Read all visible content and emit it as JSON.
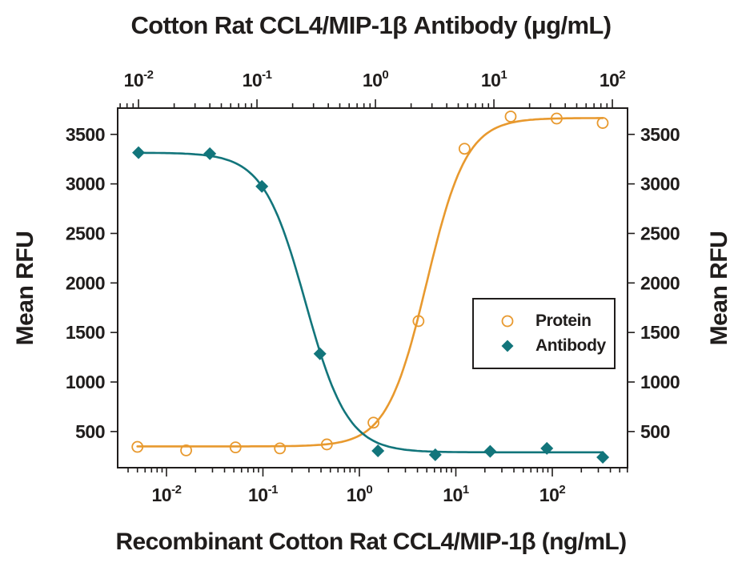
{
  "titles": {
    "top_axis_title": "Cotton Rat CCL4/MIP-1β Antibody (μg/mL)",
    "bottom_axis_title": "Recombinant Cotton Rat CCL4/MIP-1β (ng/mL)",
    "left_axis_title": "Mean RFU",
    "right_axis_title": "Mean RFU"
  },
  "colors": {
    "ink": "#201d1c",
    "protein": "#E8992E",
    "antibody": "#12757B",
    "background": "#ffffff"
  },
  "chart_data": {
    "type": "scatter",
    "grid": false,
    "y_axis": {
      "label": "Mean RFU",
      "ticks": [
        500,
        1000,
        1500,
        2000,
        2500,
        3000,
        3500
      ],
      "range": [
        135,
        3765
      ],
      "mirrored_right": true
    },
    "top_x_axis": {
      "label": "Cotton Rat CCL4/MIP-1β Antibody (μg/mL)",
      "scale": "log",
      "unit": "μg/mL",
      "tick_exponents": [
        -2,
        -1,
        0,
        1,
        2
      ],
      "range_exponents": [
        -2.176,
        2.128
      ]
    },
    "bottom_x_axis": {
      "label": "Recombinant Cotton Rat CCL4/MIP-1β (ng/mL)",
      "scale": "log",
      "unit": "ng/mL",
      "tick_exponents": [
        -2,
        -1,
        0,
        1,
        2
      ],
      "range_exponents": [
        -2.506,
        2.78
      ]
    },
    "legend": {
      "position": "middle-right",
      "border": true,
      "items": [
        "Protein",
        "Antibody"
      ]
    },
    "series": [
      {
        "name": "Protein",
        "axis": "bottom_x_axis",
        "marker": "open-circle",
        "color": "#E8992E",
        "points": [
          [
            0.005,
            345
          ],
          [
            0.016,
            310
          ],
          [
            0.052,
            340
          ],
          [
            0.15,
            330
          ],
          [
            0.46,
            370
          ],
          [
            1.4,
            590
          ],
          [
            4.1,
            1615
          ],
          [
            12.3,
            3355
          ],
          [
            37,
            3680
          ],
          [
            111,
            3660
          ],
          [
            333,
            3615
          ]
        ],
        "fit_4pl": {
          "low_dose_asymptote": 350,
          "high_dose_asymptote": 3665,
          "c50": 5.0,
          "hill": 2.1
        }
      },
      {
        "name": "Antibody",
        "axis": "top_x_axis",
        "marker": "filled-diamond",
        "color": "#12757B",
        "points": [
          [
            0.01,
            3315
          ],
          [
            0.04,
            3305
          ],
          [
            0.11,
            2975
          ],
          [
            0.34,
            1285
          ],
          [
            1.05,
            305
          ],
          [
            3.2,
            265
          ],
          [
            9.3,
            300
          ],
          [
            28,
            330
          ],
          [
            83,
            240
          ]
        ],
        "fit_4pl": {
          "low_dose_asymptote": 3315,
          "high_dose_asymptote": 290,
          "c50": 0.257,
          "hill": 2.44
        }
      }
    ]
  }
}
